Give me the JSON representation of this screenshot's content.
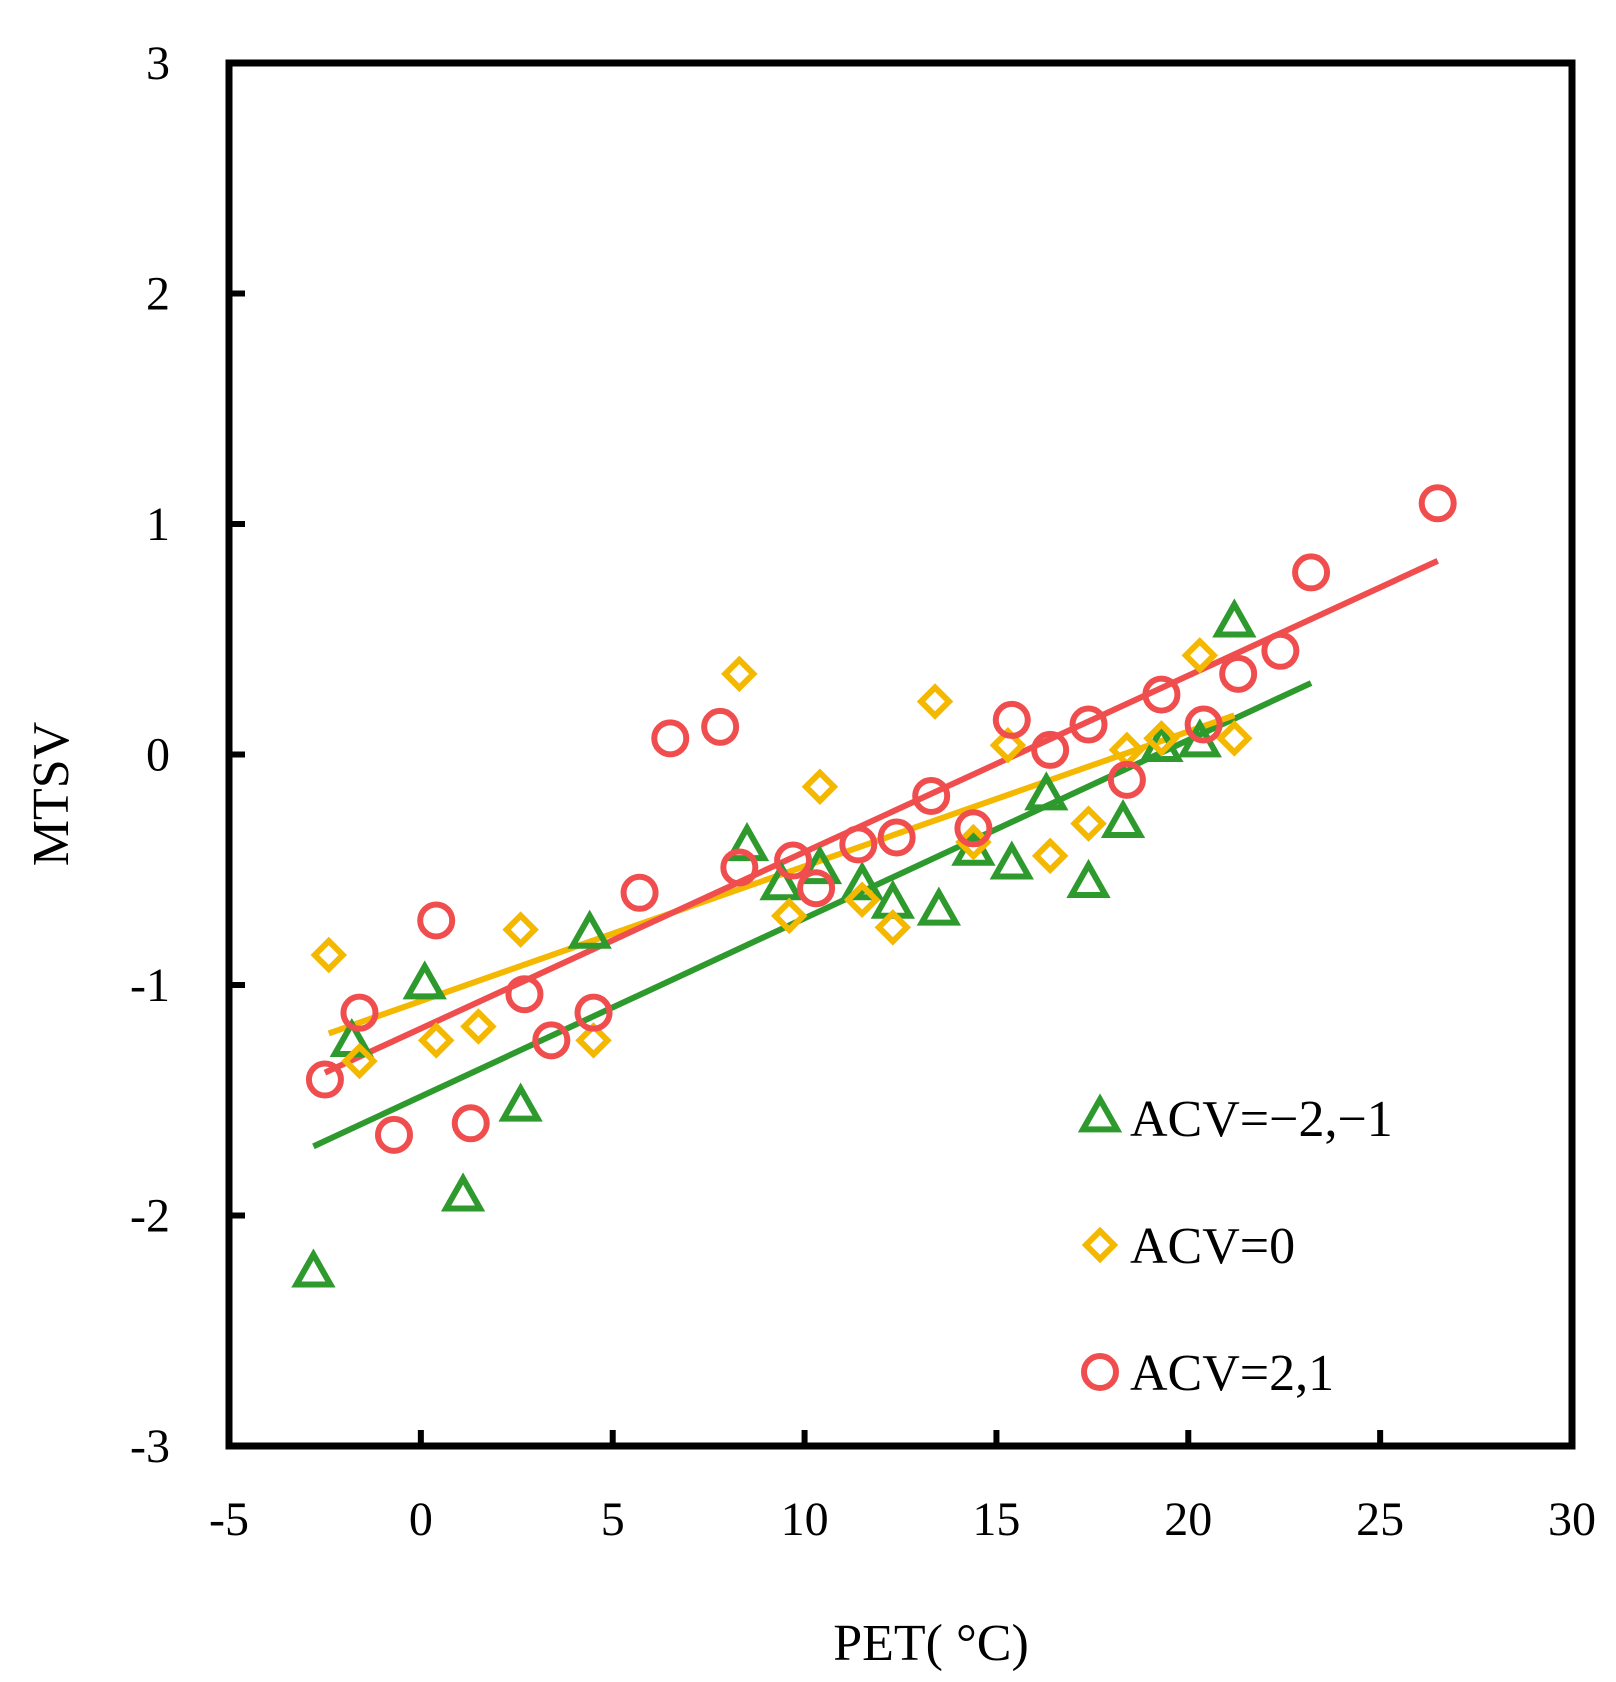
{
  "chart_data": {
    "type": "scatter",
    "title": "",
    "xlabel": "PET( °C)",
    "ylabel": "MTSV",
    "xlim": [
      -5,
      30
    ],
    "ylim": [
      -3,
      3
    ],
    "xticks": [
      -5,
      0,
      5,
      10,
      15,
      20,
      25,
      30
    ],
    "yticks": [
      -3,
      -2,
      -1,
      0,
      1,
      2,
      3
    ],
    "xtick_labels": [
      "-5",
      "0",
      "5",
      "10",
      "15",
      "20",
      "25",
      "30"
    ],
    "ytick_labels": [
      "-3",
      "-2",
      "-1",
      "0",
      "1",
      "2",
      "3"
    ],
    "grid": false,
    "legend_position": "bottom-right",
    "series": [
      {
        "name": "ACV=−2,−1",
        "marker": "triangle",
        "color": "#2e9a2e",
        "points": [
          [
            -2.8,
            -2.25
          ],
          [
            -1.8,
            -1.25
          ],
          [
            0.1,
            -1.0
          ],
          [
            1.1,
            -1.92
          ],
          [
            2.6,
            -1.53
          ],
          [
            4.4,
            -0.78
          ],
          [
            8.5,
            -0.4
          ],
          [
            9.4,
            -0.57
          ],
          [
            10.4,
            -0.5
          ],
          [
            11.5,
            -0.57
          ],
          [
            12.3,
            -0.65
          ],
          [
            13.5,
            -0.68
          ],
          [
            14.4,
            -0.42
          ],
          [
            15.4,
            -0.48
          ],
          [
            16.3,
            -0.18
          ],
          [
            17.4,
            -0.56
          ],
          [
            18.3,
            -0.3
          ],
          [
            19.3,
            0.03
          ],
          [
            20.3,
            0.05
          ],
          [
            21.2,
            0.57
          ]
        ]
      },
      {
        "name": "ACV=0",
        "marker": "diamond",
        "color": "#f5b800",
        "points": [
          [
            -2.4,
            -0.87
          ],
          [
            -1.6,
            -1.33
          ],
          [
            0.4,
            -1.24
          ],
          [
            1.5,
            -1.18
          ],
          [
            2.6,
            -0.76
          ],
          [
            4.5,
            -1.24
          ],
          [
            8.3,
            0.35
          ],
          [
            9.6,
            -0.7
          ],
          [
            10.4,
            -0.14
          ],
          [
            11.5,
            -0.63
          ],
          [
            12.3,
            -0.75
          ],
          [
            13.4,
            0.23
          ],
          [
            14.4,
            -0.38
          ],
          [
            15.3,
            0.04
          ],
          [
            16.4,
            -0.44
          ],
          [
            17.4,
            -0.3
          ],
          [
            18.4,
            0.02
          ],
          [
            19.3,
            0.07
          ],
          [
            20.3,
            0.43
          ],
          [
            21.2,
            0.07
          ]
        ]
      },
      {
        "name": "ACV=2,1",
        "marker": "circle",
        "color": "#f04e4e",
        "points": [
          [
            -2.5,
            -1.41
          ],
          [
            -1.6,
            -1.12
          ],
          [
            -0.7,
            -1.65
          ],
          [
            0.4,
            -0.72
          ],
          [
            1.3,
            -1.6
          ],
          [
            2.7,
            -1.04
          ],
          [
            3.4,
            -1.24
          ],
          [
            4.5,
            -1.12
          ],
          [
            5.7,
            -0.6
          ],
          [
            6.5,
            0.07
          ],
          [
            7.8,
            0.12
          ],
          [
            8.3,
            -0.49
          ],
          [
            9.7,
            -0.46
          ],
          [
            10.3,
            -0.58
          ],
          [
            11.4,
            -0.39
          ],
          [
            12.4,
            -0.36
          ],
          [
            13.3,
            -0.18
          ],
          [
            14.4,
            -0.32
          ],
          [
            15.4,
            0.15
          ],
          [
            16.4,
            0.02
          ],
          [
            17.4,
            0.13
          ],
          [
            18.4,
            -0.11
          ],
          [
            19.3,
            0.26
          ],
          [
            20.4,
            0.13
          ],
          [
            21.3,
            0.35
          ],
          [
            22.4,
            0.45
          ],
          [
            23.2,
            0.79
          ],
          [
            26.5,
            1.09
          ]
        ]
      }
    ],
    "trendlines": [
      {
        "series": "ACV=−2,−1",
        "x": [
          -2.8,
          23.2
        ],
        "y": [
          -1.7,
          0.31
        ],
        "color": "#2e9a2e"
      },
      {
        "series": "ACV=0",
        "x": [
          -2.4,
          21.2
        ],
        "y": [
          -1.21,
          0.17
        ],
        "color": "#f5b800"
      },
      {
        "series": "ACV=2,1",
        "x": [
          -2.5,
          26.5
        ],
        "y": [
          -1.38,
          0.84
        ],
        "color": "#f04e4e"
      }
    ]
  }
}
